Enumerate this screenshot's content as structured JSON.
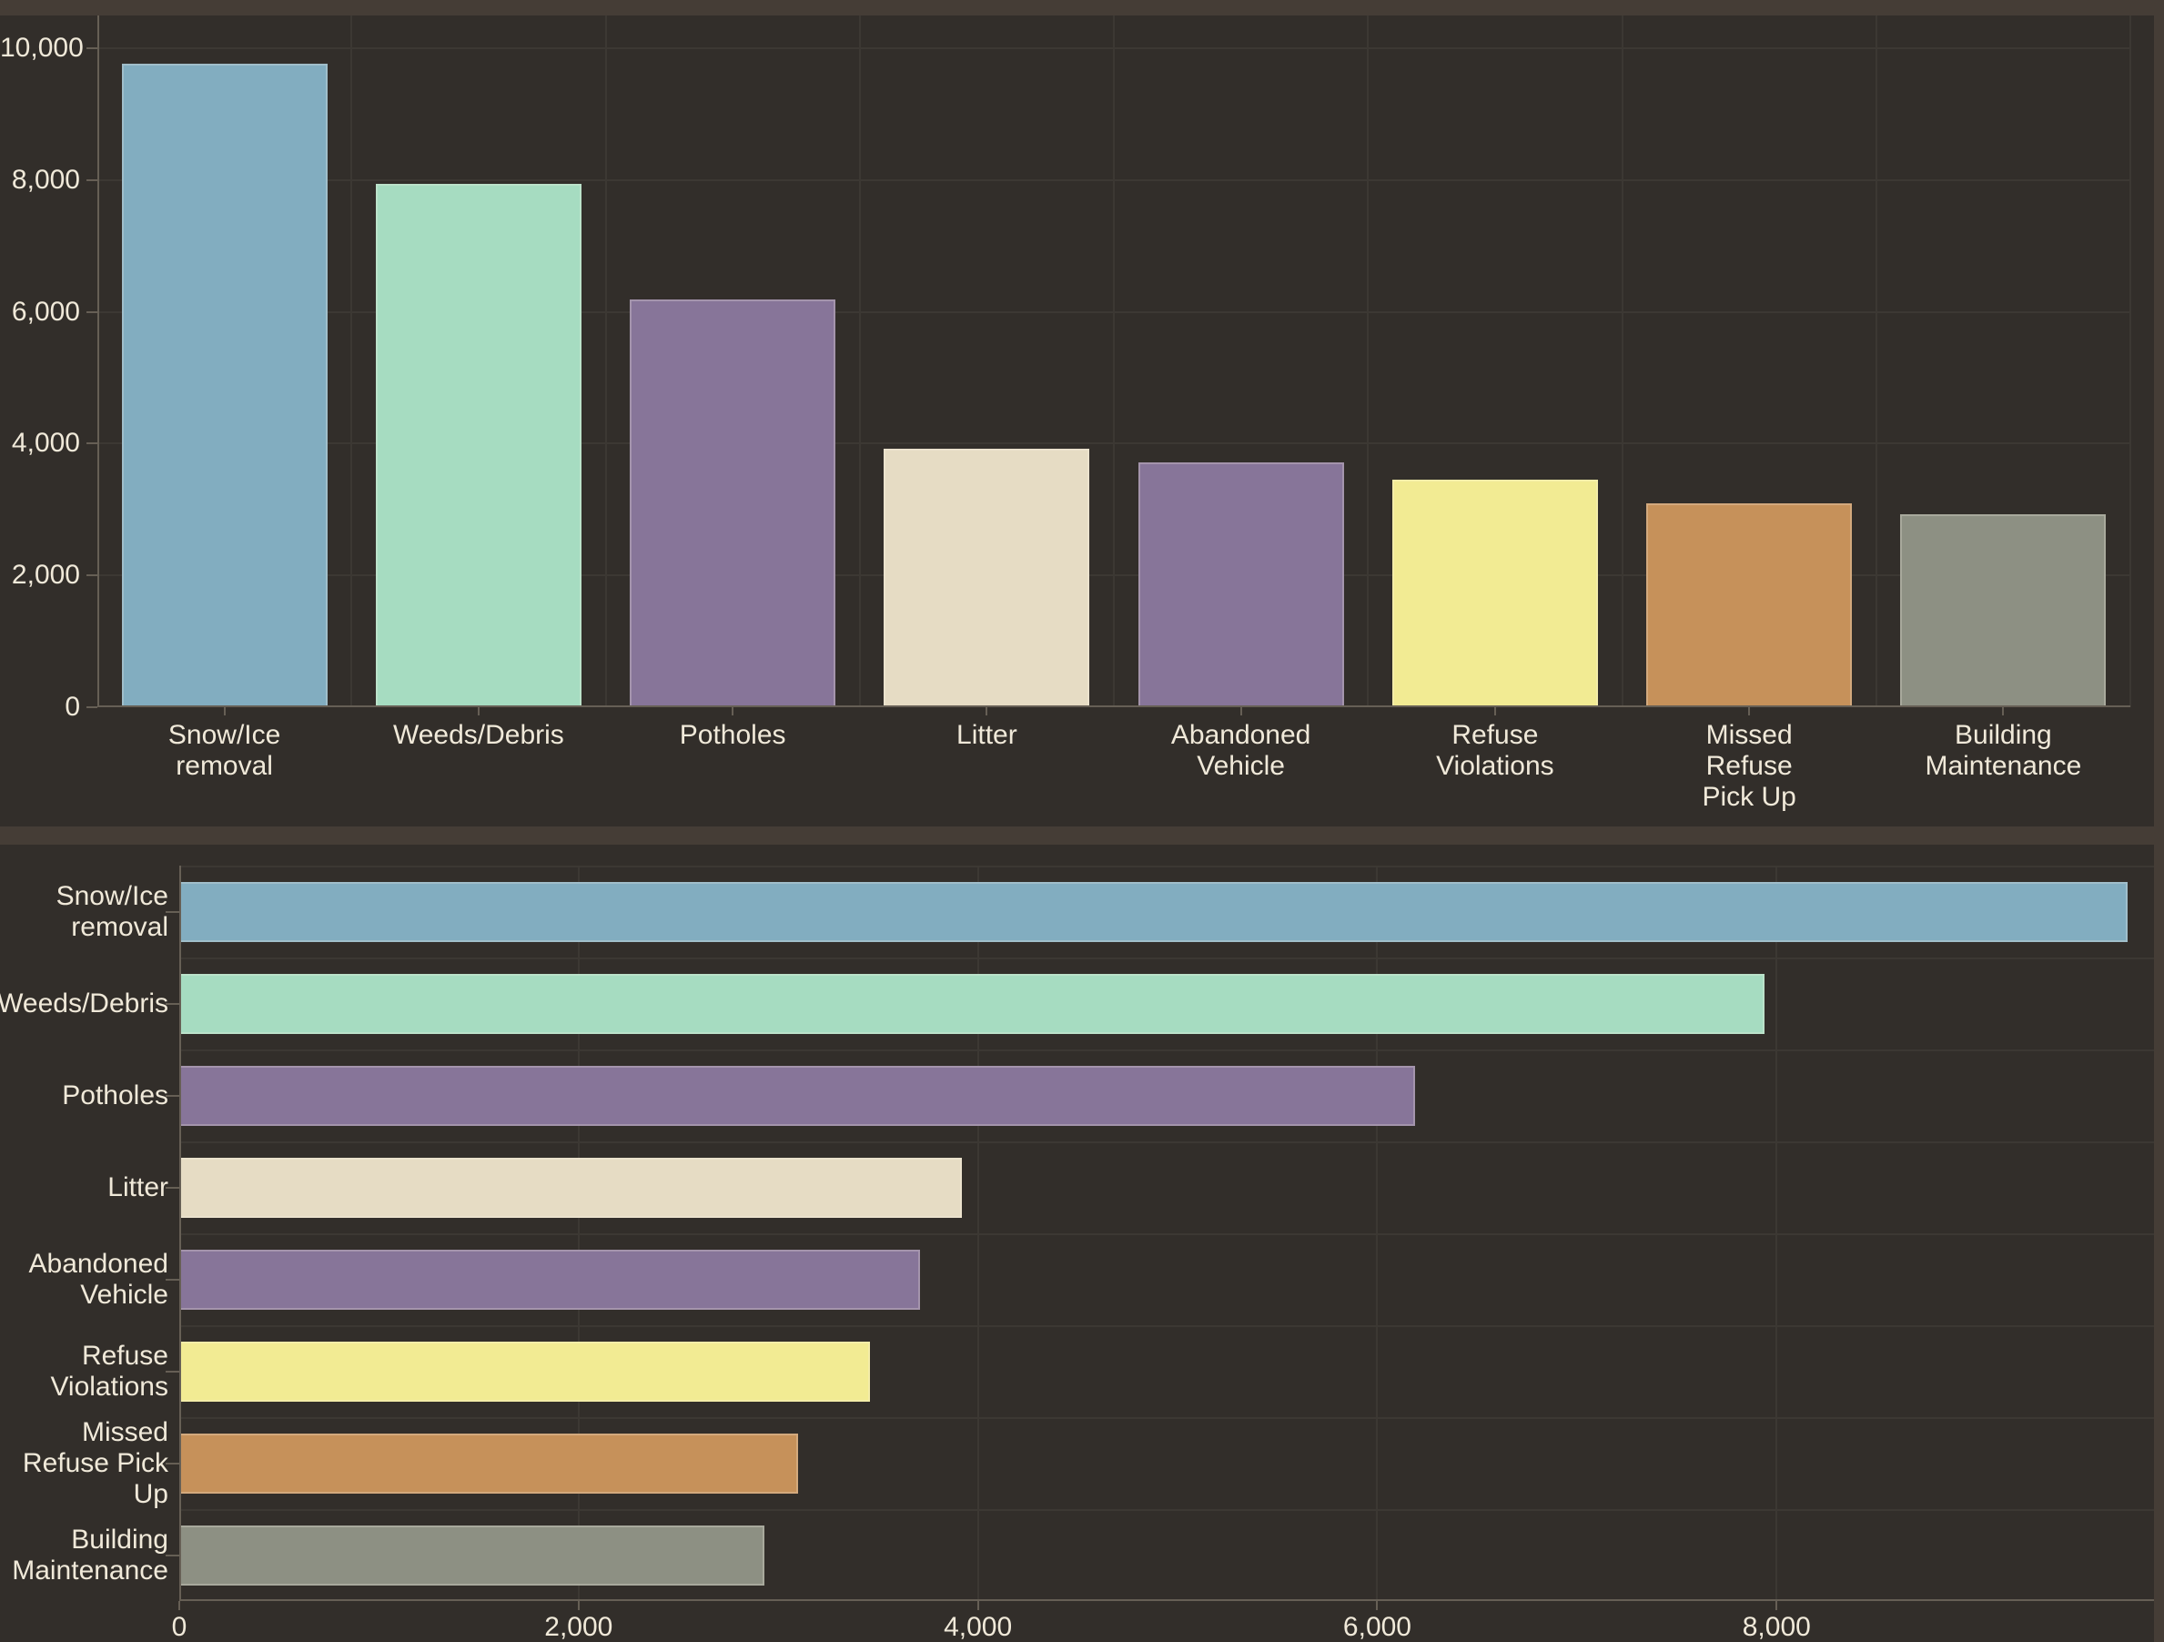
{
  "theme": {
    "page_bg": "#453D36",
    "card_bg": "#322E2A",
    "grid_color": "#3C3833",
    "axis_color": "#665F55",
    "text_color": "#F0E9D9",
    "bar_border": "rgba(250,245,233,0.25)"
  },
  "chart_data": [
    {
      "type": "bar",
      "orientation": "vertical",
      "title": "",
      "categories": [
        "Snow/Ice\nremoval",
        "Weeds/Debris",
        "Potholes",
        "Litter",
        "Abandoned\nVehicle",
        "Refuse\nViolations",
        "Missed\nRefuse\nPick Up",
        "Building\nMaintenance"
      ],
      "values": [
        9760,
        7940,
        6190,
        3920,
        3710,
        3460,
        3100,
        2930
      ],
      "bar_colors": [
        "#82ADC0",
        "#A6DCC1",
        "#877599",
        "#E6DCC4",
        "#877599",
        "#F2EB93",
        "#C6915A",
        "#8D9083"
      ],
      "ylabel": "",
      "xlabel": "",
      "ylim": [
        0,
        10000
      ],
      "yticks": [
        0,
        2000,
        4000,
        6000,
        8000,
        10000
      ],
      "ytick_labels": [
        "0",
        "2,000",
        "4,000",
        "6,000",
        "8,000",
        "10,000"
      ],
      "grid": true,
      "legend": false
    },
    {
      "type": "bar",
      "orientation": "horizontal",
      "title": "",
      "categories": [
        "Snow/Ice\nremoval",
        "Weeds/Debris",
        "Potholes",
        "Litter",
        "Abandoned\nVehicle",
        "Refuse\nViolations",
        "Missed\nRefuse Pick\nUp",
        "Building\nMaintenance"
      ],
      "values": [
        9760,
        7940,
        6190,
        3920,
        3710,
        3460,
        3100,
        2930
      ],
      "bar_colors": [
        "#82ADC0",
        "#A6DCC1",
        "#877599",
        "#E6DCC4",
        "#877599",
        "#F2EB93",
        "#C6915A",
        "#8D9083"
      ],
      "xlabel": "",
      "ylabel": "",
      "xlim": [
        0,
        9890
      ],
      "xticks": [
        0,
        2000,
        4000,
        6000,
        8000
      ],
      "xtick_labels": [
        "0",
        "2,000",
        "4,000",
        "6,000",
        "8,000"
      ],
      "grid": true,
      "legend": false
    }
  ]
}
